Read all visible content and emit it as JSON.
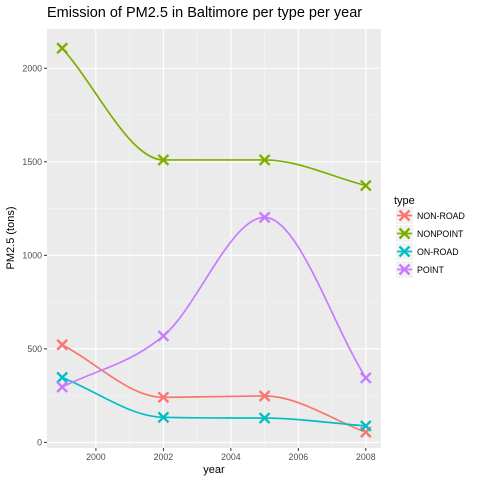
{
  "chart_data": {
    "type": "line",
    "title": "Emission of PM2.5 in Baltimore per type per year",
    "xlabel": "year",
    "ylabel": "PM2.5 (tons)",
    "x": [
      1999,
      2002,
      2005,
      2008
    ],
    "xlim": [
      1998.55,
      2008.45
    ],
    "ylim": [
      -30,
      2210
    ],
    "xticks": [
      2000,
      2002,
      2004,
      2006,
      2008
    ],
    "yticks": [
      0,
      500,
      1000,
      1500,
      2000
    ],
    "xtick_labels": [
      "2000",
      "2002",
      "2004",
      "2006",
      "2008"
    ],
    "ytick_labels": [
      "0",
      "500",
      "1000",
      "1500",
      "2000"
    ],
    "grid": true,
    "smoothed": true,
    "marker": "x",
    "legend": {
      "title": "type",
      "position": "right"
    },
    "series": [
      {
        "name": "NON-ROAD",
        "color": "#F8766D",
        "values": [
          522,
          241,
          248,
          55
        ]
      },
      {
        "name": "NONPOINT",
        "color": "#7CAE00",
        "values": [
          2107,
          1510,
          1510,
          1373
        ]
      },
      {
        "name": "ON-ROAD",
        "color": "#00BFC4",
        "values": [
          347,
          134,
          130,
          88
        ]
      },
      {
        "name": "POINT",
        "color": "#C77CFF",
        "values": [
          296,
          569,
          1203,
          345
        ]
      }
    ]
  }
}
